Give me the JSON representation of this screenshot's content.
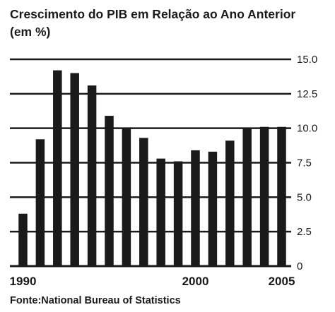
{
  "chart_data": {
    "type": "bar",
    "title": "Crescimento do PIB em Relação ao Ano Anterior (em %)",
    "source": "Fonte:National Bureau of Statistics",
    "x": [
      1990,
      1991,
      1992,
      1993,
      1994,
      1995,
      1996,
      1997,
      1998,
      1999,
      2000,
      2001,
      2002,
      2003,
      2004,
      2005
    ],
    "values": [
      3.8,
      9.2,
      14.2,
      14.0,
      13.1,
      10.9,
      10.0,
      9.3,
      7.8,
      7.6,
      8.4,
      8.3,
      9.1,
      10.0,
      10.1,
      10.1
    ],
    "x_tick_labels": [
      "1990",
      "2000",
      "2005"
    ],
    "x_ticks": [
      1990,
      2000,
      2005
    ],
    "y_ticks": [
      0,
      2.5,
      5.0,
      7.5,
      10.0,
      12.5,
      15.0
    ],
    "y_tick_labels": [
      "0",
      "2.5",
      "5.0",
      "7.5",
      "10.0",
      "12.5",
      "15.0"
    ],
    "ylim": [
      0,
      15
    ],
    "y_axis_position": "right",
    "grid": true,
    "bar_color": "#1a1a1a",
    "grid_color": "#1a1a1a"
  }
}
